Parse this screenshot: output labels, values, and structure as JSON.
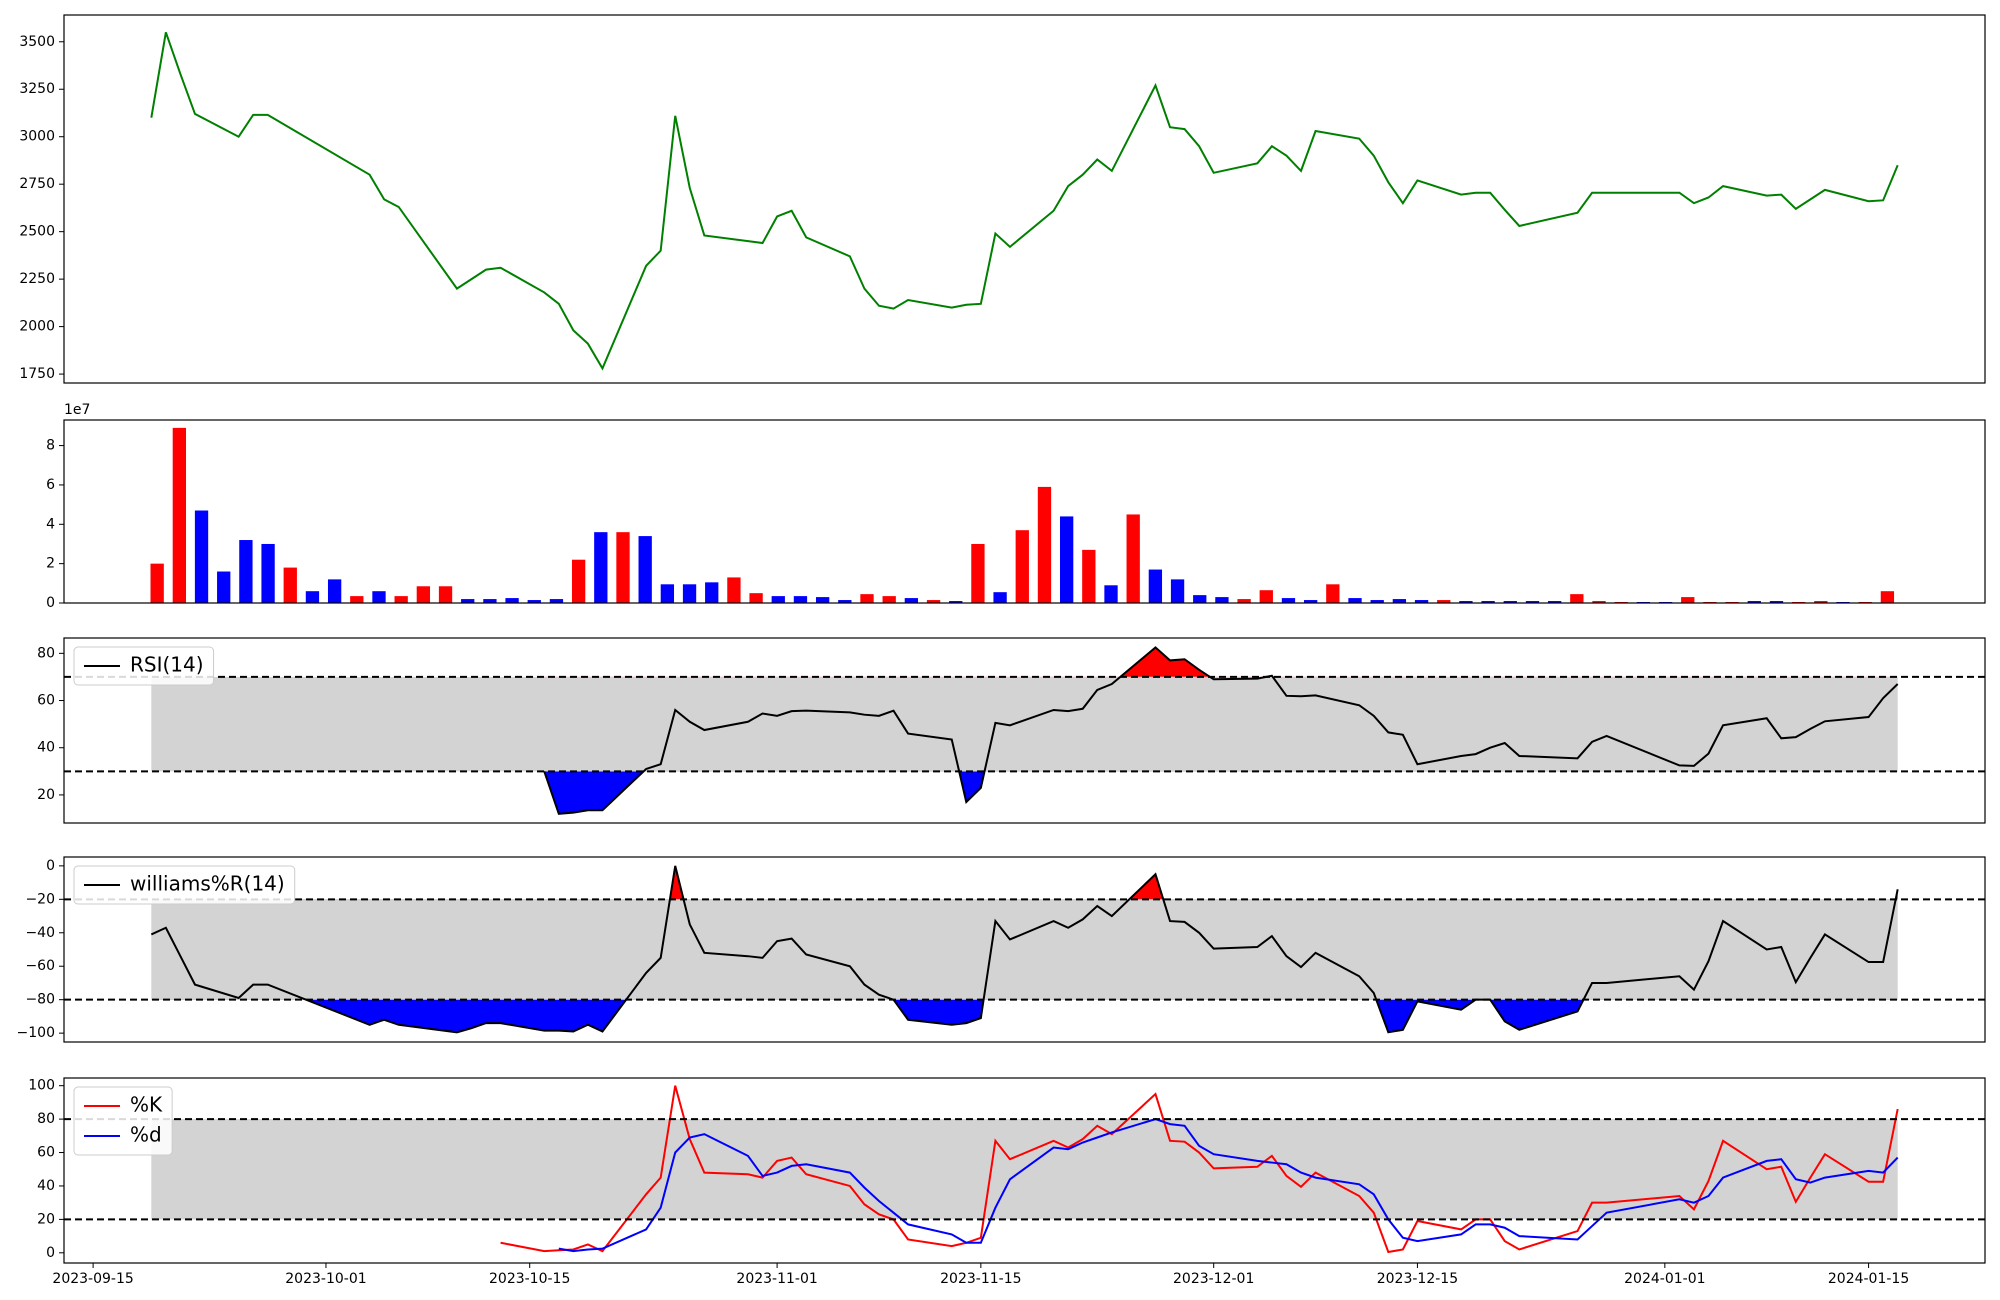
{
  "chart_data": [
    {
      "type": "line",
      "series": [
        {
          "color": "green",
          "values": [
            3100,
            3550,
            3330,
            3120,
            3000,
            3115,
            3115,
            2800,
            2670,
            2630,
            2200,
            2250,
            2300,
            2310,
            2180,
            2120,
            1980,
            1910,
            1780,
            2320,
            2400,
            3110,
            2730,
            2480,
            2450,
            2440,
            2580,
            2610,
            2470,
            2370,
            2200,
            2110,
            2095,
            2140,
            2100,
            2115,
            2120,
            2490,
            2420,
            2610,
            2740,
            2800,
            2880,
            2820,
            3270,
            3050,
            3040,
            2950,
            2810,
            2860,
            2950,
            2900,
            2820,
            3030,
            2990,
            2900,
            2760,
            2650,
            2770,
            2695,
            2705,
            2705,
            2615,
            2530,
            2600,
            2705,
            2705,
            2705,
            2650,
            2680,
            2740,
            2690,
            2695,
            2620,
            2670,
            2720,
            2660,
            2665,
            2850
          ]
        }
      ],
      "ylim": [
        1703,
        3641
      ],
      "yticks": [
        1750,
        2000,
        2250,
        2500,
        2750,
        3000,
        3250,
        3500
      ]
    },
    {
      "type": "bar",
      "y_offset_text": "1e7",
      "values": [
        2.0,
        8.9,
        4.7,
        1.6,
        3.2,
        3.0,
        1.8,
        0.6,
        1.2,
        0.35,
        0.6,
        0.35,
        0.85,
        0.85,
        0.2,
        0.2,
        0.25,
        0.15,
        0.2,
        2.2,
        3.6,
        3.6,
        3.4,
        0.95,
        0.95,
        1.05,
        1.3,
        0.5,
        0.35,
        0.35,
        0.3,
        0.15,
        0.45,
        0.35,
        0.25,
        0.15,
        0.1,
        3.0,
        0.55,
        3.7,
        5.9,
        4.4,
        2.7,
        0.9,
        4.5,
        1.7,
        1.2,
        0.4,
        0.3,
        0.2,
        0.65,
        0.25,
        0.15,
        0.95,
        0.25,
        0.15,
        0.2,
        0.15,
        0.15,
        0.1,
        0.1,
        0.1,
        0.1,
        0.1,
        0.45,
        0.1,
        0.05,
        0.05,
        0.05,
        0.3,
        0.05,
        0.05,
        0.1,
        0.1,
        0.05,
        0.1,
        0.05,
        0.05,
        0.6
      ],
      "colors": [
        "red",
        "red",
        "blue",
        "blue",
        "blue",
        "blue",
        "red",
        "blue",
        "blue",
        "red",
        "blue",
        "red",
        "red",
        "red",
        "blue",
        "blue",
        "blue",
        "blue",
        "blue",
        "red",
        "blue",
        "red",
        "blue",
        "blue",
        "blue",
        "blue",
        "red",
        "red",
        "blue",
        "blue",
        "blue",
        "blue",
        "red",
        "red",
        "blue",
        "red",
        "blue",
        "red",
        "blue",
        "red",
        "red",
        "blue",
        "red",
        "blue",
        "red",
        "blue",
        "blue",
        "blue",
        "blue",
        "red",
        "red",
        "blue",
        "blue",
        "red",
        "blue",
        "blue",
        "blue",
        "blue",
        "red",
        "blue",
        "blue",
        "blue",
        "blue",
        "blue",
        "red",
        "red",
        "red",
        "blue",
        "blue",
        "red",
        "red",
        "red",
        "blue",
        "blue",
        "red",
        "red",
        "blue",
        "red",
        "red"
      ],
      "xlim": [
        -4.2,
        82.4
      ],
      "ylim": [
        0,
        9.3
      ],
      "yticks": [
        0,
        2,
        4,
        6,
        8
      ]
    },
    {
      "type": "line",
      "legend": "upper left",
      "series": [
        {
          "name": "RSI(14)",
          "color": "black",
          "values": [
            null,
            null,
            null,
            null,
            null,
            null,
            null,
            null,
            null,
            null,
            null,
            null,
            null,
            null,
            30,
            12,
            12.5,
            13.5,
            13.5,
            31,
            33,
            56,
            51,
            47.5,
            51,
            54.5,
            53.5,
            55.5,
            55.7,
            55,
            54,
            53.5,
            55.7,
            46,
            43.5,
            17,
            23,
            50.5,
            49.5,
            56,
            55.5,
            56.5,
            64.5,
            67,
            82.5,
            77,
            77.5,
            73,
            69,
            69.3,
            70.5,
            62,
            61.8,
            62.2,
            58,
            53.5,
            46.5,
            45.5,
            33,
            36.5,
            37.3,
            40,
            42,
            36.5,
            35.5,
            42.5,
            45,
            32.5,
            32.3,
            37.5,
            49.5,
            52.5,
            44,
            44.5,
            48,
            51.2,
            53,
            61,
            67
          ]
        }
      ],
      "bands": [
        30,
        70
      ],
      "band_color": "lightgray",
      "fill_above_color": "red",
      "fill_below_color": "blue",
      "ylim": [
        8.1,
        86.5
      ],
      "yticks": [
        20,
        40,
        60,
        80
      ]
    },
    {
      "type": "line",
      "legend": "upper left",
      "series": [
        {
          "name": "williams%R(14)",
          "color": "black",
          "values": [
            -41,
            -37,
            -54,
            -71,
            -79,
            -71,
            -71,
            -95,
            -92,
            -95,
            -99.5,
            -97,
            -94,
            -94,
            -98.5,
            -98.5,
            -99,
            -95,
            -99,
            -64,
            -55,
            0,
            -35,
            -52,
            -54,
            -55,
            -45,
            -43.5,
            -53,
            -60,
            -71,
            -77,
            -80,
            -92,
            -95,
            -94,
            -91,
            -33,
            -44,
            -33,
            -37,
            -32,
            -24,
            -30,
            -5,
            -33,
            -33.5,
            -40,
            -49.5,
            -48.5,
            -42,
            -54,
            -60.5,
            -52,
            -66,
            -76,
            -99.5,
            -98,
            -81,
            -86,
            -80,
            -80,
            -93,
            -98,
            -87,
            -70,
            -70,
            -66,
            -74,
            -57,
            -33,
            -50,
            -48.5,
            -69.5,
            -55,
            -41,
            -57.5,
            -57.5,
            -14
          ]
        }
      ],
      "bands": [
        -80,
        -20
      ],
      "band_color": "lightgray",
      "fill_above_color": "red",
      "fill_below_color": "blue",
      "ylim": [
        -105.3,
        5.3
      ],
      "yticks": [
        {
          "value": -100,
          "label": "−100"
        },
        {
          "value": -80,
          "label": "−80"
        },
        {
          "value": -60,
          "label": "−60"
        },
        {
          "value": -40,
          "label": "−40"
        },
        {
          "value": -20,
          "label": "−20"
        },
        0
      ]
    },
    {
      "type": "line",
      "legend": "upper left",
      "x": [
        "2023-09-19",
        "2023-09-20",
        "2023-09-21",
        "2023-09-22",
        "2023-09-25",
        "2023-09-26",
        "2023-09-27",
        "2023-10-04",
        "2023-10-05",
        "2023-10-06",
        "2023-10-10",
        "2023-10-11",
        "2023-10-12",
        "2023-10-13",
        "2023-10-16",
        "2023-10-17",
        "2023-10-18",
        "2023-10-19",
        "2023-10-20",
        "2023-10-23",
        "2023-10-24",
        "2023-10-25",
        "2023-10-26",
        "2023-10-27",
        "2023-10-30",
        "2023-10-31",
        "2023-11-01",
        "2023-11-02",
        "2023-11-03",
        "2023-11-06",
        "2023-11-07",
        "2023-11-08",
        "2023-11-09",
        "2023-11-10",
        "2023-11-13",
        "2023-11-14",
        "2023-11-15",
        "2023-11-16",
        "2023-11-17",
        "2023-11-20",
        "2023-11-21",
        "2023-11-22",
        "2023-11-23",
        "2023-11-24",
        "2023-11-27",
        "2023-11-28",
        "2023-11-29",
        "2023-11-30",
        "2023-12-01",
        "2023-12-04",
        "2023-12-05",
        "2023-12-06",
        "2023-12-07",
        "2023-12-08",
        "2023-12-11",
        "2023-12-12",
        "2023-12-13",
        "2023-12-14",
        "2023-12-15",
        "2023-12-18",
        "2023-12-19",
        "2023-12-20",
        "2023-12-21",
        "2023-12-22",
        "2023-12-26",
        "2023-12-27",
        "2023-12-28",
        "2024-01-02",
        "2024-01-03",
        "2024-01-04",
        "2024-01-05",
        "2024-01-08",
        "2024-01-09",
        "2024-01-10",
        "2024-01-11",
        "2024-01-12",
        "2024-01-15",
        "2024-01-16",
        "2024-01-17"
      ],
      "xlim": [
        "2023-09-13",
        "2024-01-23"
      ],
      "xticks": [
        "2023-09-15",
        "2023-10-01",
        "2023-10-15",
        "2023-11-01",
        "2023-11-15",
        "2023-12-01",
        "2023-12-15",
        "2024-01-01",
        "2024-01-15"
      ],
      "series": [
        {
          "name": "%K",
          "color": "red",
          "values": [
            null,
            null,
            null,
            null,
            null,
            null,
            null,
            null,
            null,
            null,
            null,
            null,
            null,
            6,
            1,
            1.5,
            2,
            5,
            1,
            35,
            45,
            100,
            68,
            48,
            47,
            45,
            55,
            57,
            47,
            40,
            29,
            23,
            20,
            8,
            4,
            6,
            9,
            67,
            56,
            67,
            63,
            68,
            76,
            71,
            95,
            67,
            66.5,
            60,
            50.5,
            51.5,
            58,
            46,
            39.5,
            48,
            34,
            24,
            0.5,
            2,
            19,
            14,
            20,
            20,
            7,
            2,
            13,
            30,
            30,
            34,
            26,
            43,
            67,
            50,
            51.5,
            30.5,
            45,
            59,
            42.5,
            42.5,
            86
          ]
        },
        {
          "name": "%d",
          "color": "blue",
          "values": [
            null,
            null,
            null,
            null,
            null,
            null,
            null,
            null,
            null,
            null,
            null,
            null,
            null,
            null,
            null,
            2.5,
            1,
            2,
            2.5,
            14,
            27,
            60,
            69,
            71,
            58,
            46,
            48,
            52,
            53,
            48,
            39,
            31,
            24,
            17,
            11,
            6,
            6,
            27,
            44,
            63,
            62,
            66,
            69,
            72,
            80,
            77,
            76,
            64,
            59,
            55,
            54,
            53,
            48,
            45,
            41,
            35,
            20,
            9,
            7,
            11,
            17,
            17,
            15,
            10,
            8,
            16,
            24,
            32,
            30,
            34,
            45,
            55,
            56,
            44,
            42,
            45,
            49,
            48,
            57
          ]
        }
      ],
      "bands": [
        20,
        80
      ],
      "band_color": "lightgray",
      "ylim": [
        -6.1,
        104.6
      ],
      "yticks": [
        0,
        20,
        40,
        60,
        80,
        100
      ]
    }
  ]
}
